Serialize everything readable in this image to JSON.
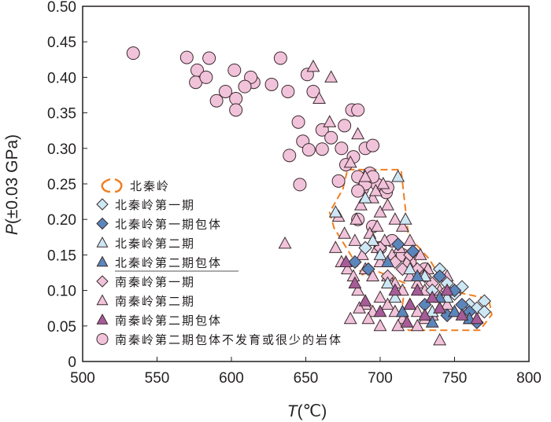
{
  "chart_data": {
    "type": "scatter",
    "xlabel": "T(℃)",
    "xlabel_var": "T",
    "xlabel_unit": "(℃)",
    "ylabel": "P(±0.03 GPa)",
    "ylabel_var": "P",
    "ylabel_unit": "(±0.03 GPa)",
    "xlim": [
      500,
      800
    ],
    "ylim": [
      0,
      0.5
    ],
    "xticks": [
      "500",
      "550",
      "600",
      "650",
      "700",
      "750",
      "800"
    ],
    "yticks": [
      "0",
      "0.05",
      "0.10",
      "0.15",
      "0.20",
      "0.25",
      "0.30",
      "0.35",
      "0.40",
      "0.45",
      "0.50"
    ],
    "legend_position": "middle-left",
    "region": {
      "name": "北秦岭",
      "color": "#f07f22",
      "outline": [
        [
          678,
          0.27
        ],
        [
          714,
          0.27
        ],
        [
          719,
          0.177
        ],
        [
          733,
          0.144
        ],
        [
          746,
          0.1
        ],
        [
          773,
          0.088
        ],
        [
          775,
          0.066
        ],
        [
          767,
          0.044
        ],
        [
          719,
          0.044
        ],
        [
          714,
          0.066
        ],
        [
          717,
          0.11
        ],
        [
          698,
          0.127
        ],
        [
          688,
          0.122
        ],
        [
          682,
          0.144
        ],
        [
          669,
          0.188
        ],
        [
          666,
          0.21
        ],
        [
          675,
          0.243
        ]
      ]
    },
    "series": [
      {
        "name": "北秦岭第一期",
        "marker": "diamond",
        "color": "#cde8f5",
        "points": [
          [
            690,
            0.16
          ],
          [
            740,
            0.13
          ],
          [
            750,
            0.095
          ],
          [
            760,
            0.08
          ],
          [
            765,
            0.075
          ],
          [
            770,
            0.085
          ],
          [
            770,
            0.07
          ],
          [
            755,
            0.105
          ],
          [
            745,
            0.11
          ],
          [
            735,
            0.1
          ]
        ]
      },
      {
        "name": "北秦岭第一期包体",
        "marker": "diamond",
        "color": "#5a86bb",
        "points": [
          [
            683,
            0.14
          ],
          [
            692,
            0.13
          ],
          [
            712,
            0.165
          ],
          [
            722,
            0.155
          ],
          [
            740,
            0.12
          ],
          [
            750,
            0.1
          ],
          [
            755,
            0.08
          ],
          [
            760,
            0.07
          ],
          [
            745,
            0.065
          ],
          [
            765,
            0.055
          ],
          [
            730,
            0.08
          ]
        ]
      },
      {
        "name": "北秦岭第二期",
        "marker": "triangle",
        "color": "#cde8f5",
        "points": [
          [
            712,
            0.26
          ],
          [
            670,
            0.21
          ],
          [
            690,
            0.23
          ],
          [
            717,
            0.2
          ],
          [
            695,
            0.17
          ],
          [
            700,
            0.15
          ],
          [
            720,
            0.13
          ],
          [
            705,
            0.11
          ],
          [
            735,
            0.07
          ],
          [
            745,
            0.09
          ],
          [
            730,
            0.12
          ],
          [
            710,
            0.09
          ]
        ]
      },
      {
        "name": "北秦岭第二期包体",
        "marker": "triangle",
        "color": "#5a86bb",
        "points": [
          [
            705,
            0.14
          ],
          [
            725,
            0.12
          ],
          [
            740,
            0.09
          ],
          [
            715,
            0.07
          ],
          [
            750,
            0.07
          ],
          [
            760,
            0.06
          ],
          [
            735,
            0.055
          ]
        ]
      },
      {
        "name": "南秦岭第一期",
        "marker": "diamond",
        "color": "#f1c3da",
        "points": [
          [
            700,
            0.16
          ],
          [
            710,
            0.14
          ],
          [
            715,
            0.13
          ],
          [
            720,
            0.15
          ],
          [
            725,
            0.13
          ],
          [
            730,
            0.12
          ],
          [
            705,
            0.12
          ],
          [
            735,
            0.11
          ],
          [
            740,
            0.12
          ],
          [
            745,
            0.1
          ]
        ]
      },
      {
        "name": "南秦岭第二期",
        "marker": "triangle",
        "color": "#f1c3da",
        "points": [
          [
            655,
            0.415
          ],
          [
            667,
            0.4
          ],
          [
            659,
            0.37
          ],
          [
            666,
            0.337
          ],
          [
            685,
            0.32
          ],
          [
            636,
            0.166
          ],
          [
            672,
            0.204
          ],
          [
            680,
            0.28
          ],
          [
            690,
            0.26
          ],
          [
            695,
            0.23
          ],
          [
            700,
            0.21
          ],
          [
            705,
            0.22
          ],
          [
            710,
            0.2
          ],
          [
            676,
            0.18
          ],
          [
            670,
            0.16
          ],
          [
            683,
            0.17
          ],
          [
            688,
            0.15
          ],
          [
            693,
            0.18
          ],
          [
            698,
            0.16
          ],
          [
            703,
            0.17
          ],
          [
            708,
            0.15
          ],
          [
            713,
            0.16
          ],
          [
            718,
            0.14
          ],
          [
            690,
            0.13
          ],
          [
            695,
            0.12
          ],
          [
            700,
            0.14
          ],
          [
            705,
            0.12
          ],
          [
            710,
            0.11
          ],
          [
            715,
            0.1
          ],
          [
            720,
            0.12
          ],
          [
            725,
            0.11
          ],
          [
            730,
            0.1
          ],
          [
            735,
            0.09
          ],
          [
            740,
            0.1
          ],
          [
            745,
            0.08
          ],
          [
            685,
            0.1
          ],
          [
            690,
            0.08
          ],
          [
            695,
            0.07
          ],
          [
            700,
            0.09
          ],
          [
            705,
            0.08
          ],
          [
            710,
            0.07
          ],
          [
            715,
            0.06
          ],
          [
            720,
            0.08
          ],
          [
            725,
            0.07
          ],
          [
            730,
            0.06
          ],
          [
            735,
            0.065
          ],
          [
            740,
            0.075
          ],
          [
            750,
            0.07
          ],
          [
            678,
            0.13
          ],
          [
            674,
            0.14
          ],
          [
            682,
            0.12
          ],
          [
            686,
            0.075
          ],
          [
            692,
            0.06
          ],
          [
            700,
            0.05
          ],
          [
            712,
            0.05
          ],
          [
            725,
            0.05
          ],
          [
            740,
            0.03
          ],
          [
            680,
            0.06
          ],
          [
            698,
            0.19
          ],
          [
            715,
            0.19
          ],
          [
            720,
            0.17
          ],
          [
            727,
            0.15
          ],
          [
            732,
            0.13
          ],
          [
            745,
            0.12
          ],
          [
            750,
            0.1
          ],
          [
            760,
            0.06
          ],
          [
            697,
            0.24
          ],
          [
            702,
            0.25
          ],
          [
            687,
            0.22
          ],
          [
            684,
            0.2
          ]
        ]
      },
      {
        "name": "南秦岭第二期包体",
        "marker": "triangle",
        "color": "#a65c98",
        "points": [
          [
            677,
            0.14
          ],
          [
            683,
            0.11
          ],
          [
            690,
            0.085
          ],
          [
            710,
            0.1
          ],
          [
            720,
            0.08
          ],
          [
            725,
            0.1
          ],
          [
            730,
            0.065
          ],
          [
            745,
            0.1
          ],
          [
            740,
            0.075
          ],
          [
            755,
            0.065
          ],
          [
            765,
            0.06
          ],
          [
            700,
            0.07
          ],
          [
            718,
            0.055
          ],
          [
            735,
            0.09
          ]
        ]
      },
      {
        "name": "南秦岭第二期包体不发育或很少的岩体",
        "marker": "circle",
        "color": "#f1c3da",
        "points": [
          [
            534,
            0.434
          ],
          [
            570,
            0.428
          ],
          [
            577,
            0.41
          ],
          [
            585,
            0.427
          ],
          [
            576,
            0.393
          ],
          [
            583,
            0.4
          ],
          [
            602,
            0.41
          ],
          [
            615,
            0.393
          ],
          [
            613,
            0.4
          ],
          [
            609,
            0.387
          ],
          [
            633,
            0.427
          ],
          [
            627,
            0.39
          ],
          [
            638,
            0.38
          ],
          [
            590,
            0.367
          ],
          [
            596,
            0.38
          ],
          [
            603,
            0.37
          ],
          [
            603,
            0.354
          ],
          [
            651,
            0.404
          ],
          [
            655,
            0.38
          ],
          [
            645,
            0.337
          ],
          [
            648,
            0.31
          ],
          [
            652,
            0.298
          ],
          [
            639,
            0.29
          ],
          [
            646,
            0.249
          ],
          [
            661,
            0.299
          ],
          [
            661,
            0.326
          ],
          [
            667,
            0.315
          ],
          [
            676,
            0.332
          ],
          [
            681,
            0.354
          ],
          [
            685,
            0.354
          ],
          [
            674,
            0.3
          ],
          [
            682,
            0.288
          ],
          [
            690,
            0.3
          ],
          [
            695,
            0.304
          ],
          [
            677,
            0.277
          ],
          [
            685,
            0.26
          ],
          [
            693,
            0.265
          ],
          [
            698,
            0.249
          ],
          [
            688,
            0.243
          ],
          [
            704,
            0.238
          ],
          [
            672,
            0.254
          ],
          [
            685,
            0.2
          ],
          [
            700,
            0.16
          ],
          [
            708,
            0.17
          ],
          [
            715,
            0.15
          ],
          [
            695,
            0.19
          ],
          [
            720,
            0.14
          ],
          [
            730,
            0.13
          ],
          [
            690,
            0.25
          ],
          [
            705,
            0.245
          ],
          [
            695,
            0.26
          ],
          [
            685,
            0.24
          ]
        ]
      }
    ]
  }
}
